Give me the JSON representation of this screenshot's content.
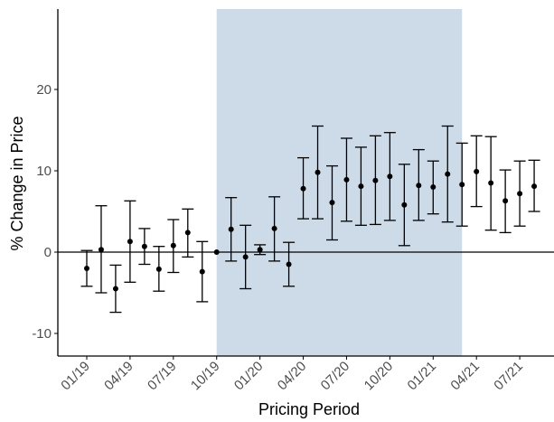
{
  "chart_data": {
    "type": "scatter",
    "xlabel": "Pricing Period",
    "ylabel": "% Change in Price",
    "ylim": [
      -13,
      30
    ],
    "y_ticks": [
      -10,
      0,
      10,
      20
    ],
    "y_tick_labels": [
      "-10",
      "0",
      "10",
      "20"
    ],
    "x_ticks": [
      "01/19",
      "04/19",
      "07/19",
      "10/19",
      "01/20",
      "04/20",
      "07/20",
      "10/20",
      "01/21",
      "04/21",
      "07/21"
    ],
    "zero_line": 0,
    "grid": false,
    "legend": "none",
    "shaded_region": {
      "from": "10/19",
      "to": "03/21"
    },
    "colors": {
      "shade": "#cddbe8",
      "points": "#000000",
      "axes": "#000000",
      "tick_text": "#4d4d4d"
    },
    "points": [
      {
        "period": "01/19",
        "estimate": -2.0,
        "ci_low": -4.2,
        "ci_high": 0.2
      },
      {
        "period": "02/19",
        "estimate": 0.3,
        "ci_low": -5.0,
        "ci_high": 5.7
      },
      {
        "period": "03/19",
        "estimate": -4.5,
        "ci_low": -7.4,
        "ci_high": -1.6
      },
      {
        "period": "04/19",
        "estimate": 1.3,
        "ci_low": -3.7,
        "ci_high": 6.3
      },
      {
        "period": "05/19",
        "estimate": 0.7,
        "ci_low": -1.5,
        "ci_high": 2.9
      },
      {
        "period": "06/19",
        "estimate": -2.1,
        "ci_low": -4.8,
        "ci_high": 0.7
      },
      {
        "period": "07/19",
        "estimate": 0.8,
        "ci_low": -2.5,
        "ci_high": 4.0
      },
      {
        "period": "08/19",
        "estimate": 2.4,
        "ci_low": -0.6,
        "ci_high": 5.3
      },
      {
        "period": "09/19",
        "estimate": -2.4,
        "ci_low": -6.1,
        "ci_high": 1.3
      },
      {
        "period": "10/19",
        "estimate": 0.0,
        "ci_low": 0.0,
        "ci_high": 0.0
      },
      {
        "period": "11/19",
        "estimate": 2.8,
        "ci_low": -1.1,
        "ci_high": 6.7
      },
      {
        "period": "12/19",
        "estimate": -0.6,
        "ci_low": -4.5,
        "ci_high": 3.3
      },
      {
        "period": "01/20",
        "estimate": 0.3,
        "ci_low": -0.3,
        "ci_high": 0.9
      },
      {
        "period": "02/20",
        "estimate": 2.9,
        "ci_low": -1.1,
        "ci_high": 6.8
      },
      {
        "period": "03/20",
        "estimate": -1.5,
        "ci_low": -4.2,
        "ci_high": 1.2
      },
      {
        "period": "04/20",
        "estimate": 7.8,
        "ci_low": 4.1,
        "ci_high": 11.6
      },
      {
        "period": "05/20",
        "estimate": 9.8,
        "ci_low": 4.1,
        "ci_high": 15.5
      },
      {
        "period": "06/20",
        "estimate": 6.1,
        "ci_low": 1.5,
        "ci_high": 10.6
      },
      {
        "period": "07/20",
        "estimate": 8.9,
        "ci_low": 3.8,
        "ci_high": 14.0
      },
      {
        "period": "08/20",
        "estimate": 8.1,
        "ci_low": 3.3,
        "ci_high": 12.9
      },
      {
        "period": "09/20",
        "estimate": 8.8,
        "ci_low": 3.4,
        "ci_high": 14.3
      },
      {
        "period": "10/20",
        "estimate": 9.3,
        "ci_low": 3.9,
        "ci_high": 14.7
      },
      {
        "period": "11/20",
        "estimate": 5.8,
        "ci_low": 0.8,
        "ci_high": 10.8
      },
      {
        "period": "12/20",
        "estimate": 8.2,
        "ci_low": 3.9,
        "ci_high": 12.6
      },
      {
        "period": "01/21",
        "estimate": 8.0,
        "ci_low": 4.7,
        "ci_high": 11.2
      },
      {
        "period": "02/21",
        "estimate": 9.6,
        "ci_low": 3.7,
        "ci_high": 15.5
      },
      {
        "period": "03/21",
        "estimate": 8.3,
        "ci_low": 3.2,
        "ci_high": 13.4
      },
      {
        "period": "04/21",
        "estimate": 9.9,
        "ci_low": 5.6,
        "ci_high": 14.3
      },
      {
        "period": "05/21",
        "estimate": 8.5,
        "ci_low": 2.7,
        "ci_high": 14.2
      },
      {
        "period": "06/21",
        "estimate": 6.3,
        "ci_low": 2.4,
        "ci_high": 10.1
      },
      {
        "period": "07/21",
        "estimate": 7.2,
        "ci_low": 3.2,
        "ci_high": 11.2
      },
      {
        "period": "08/21",
        "estimate": 8.1,
        "ci_low": 5.0,
        "ci_high": 11.3
      }
    ]
  }
}
